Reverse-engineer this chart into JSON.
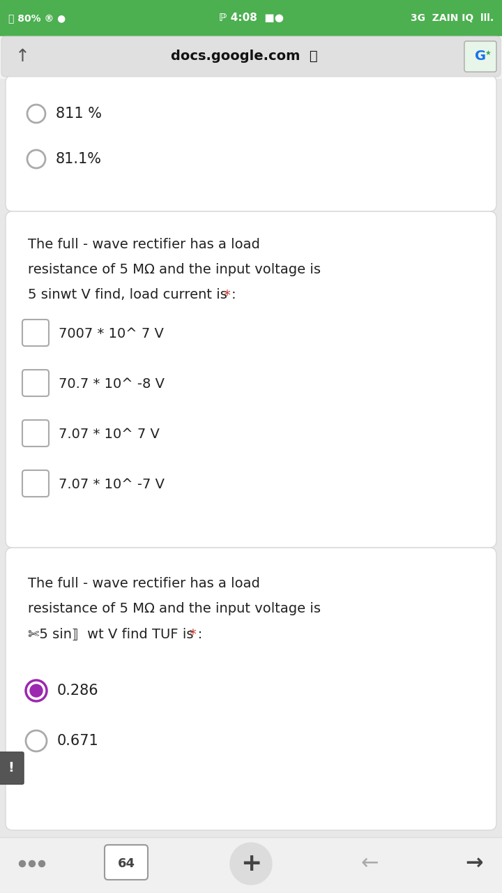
{
  "bg_color": "#e8e8e8",
  "status_bar_bg": "#4caf50",
  "url_bar_bg": "#e8e8e8",
  "card_bg": "#ffffff",
  "card_edge": "#d8d8d8",
  "text_color": "#212121",
  "star_color": "#c0392b",
  "radio_color": "#aaaaaa",
  "radio_selected_color": "#9c27b0",
  "checkbox_color": "#aaaaaa",
  "bottom_bar_bg": "#f0f0f0",
  "bottom_bar_edge": "#dddddd",
  "card1_options": [
    "811 %",
    "81.1%"
  ],
  "card2_question_lines": [
    "The full - wave rectifier has a load",
    "resistance of 5 MΩ and the input voltage is",
    "5 sinwt V find, load current is : "
  ],
  "card2_options": [
    "7007 * 10^ 7 V",
    "70.7 * 10^ -8 V",
    "7.07 * 10^ 7 V",
    "7.07 * 10^ -7 V"
  ],
  "card3_question_lines": [
    "The full - wave rectifier has a load",
    "resistance of 5 MΩ and the input voltage is",
    "✄5 sin⟧  wt V find TUF is : "
  ],
  "card3_options": [
    "0.286",
    "0.671"
  ],
  "card3_selected": 0,
  "status_left": "⛹80%  ® ●",
  "status_center": "ℙ 4:08  ■●",
  "status_right": "3G  ZAIN IQ  ‖‖."
}
